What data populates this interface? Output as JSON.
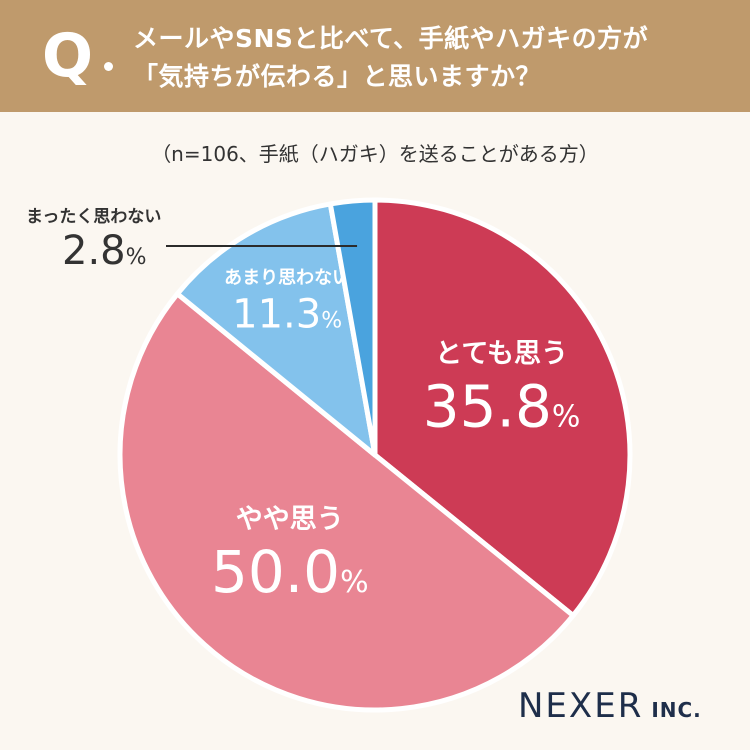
{
  "header": {
    "q_label": "Q",
    "question_line1": "メールやSNSと比べて、手紙やハガキの方が",
    "question_line2": "「気持ちが伝わる」と思いますか？"
  },
  "subtitle": "（n=106、手紙（ハガキ）を送ることがある方）",
  "chart_data": {
    "type": "pie",
    "unit": "%",
    "slices": [
      {
        "label": "とても思う",
        "value": 35.8,
        "color": "#cd3b55",
        "text_color": "#ffffff"
      },
      {
        "label": "やや思う",
        "value": 50.0,
        "color": "#e98593",
        "text_color": "#ffffff"
      },
      {
        "label": "あまり思わない",
        "value": 11.3,
        "color": "#83c2ec",
        "text_color": "#ffffff"
      },
      {
        "label": "まったく思わない",
        "value": 2.8,
        "color": "#4aa3de",
        "text_color": "#333333"
      }
    ]
  },
  "brand": {
    "name": "NEXER",
    "suffix": "INC."
  }
}
